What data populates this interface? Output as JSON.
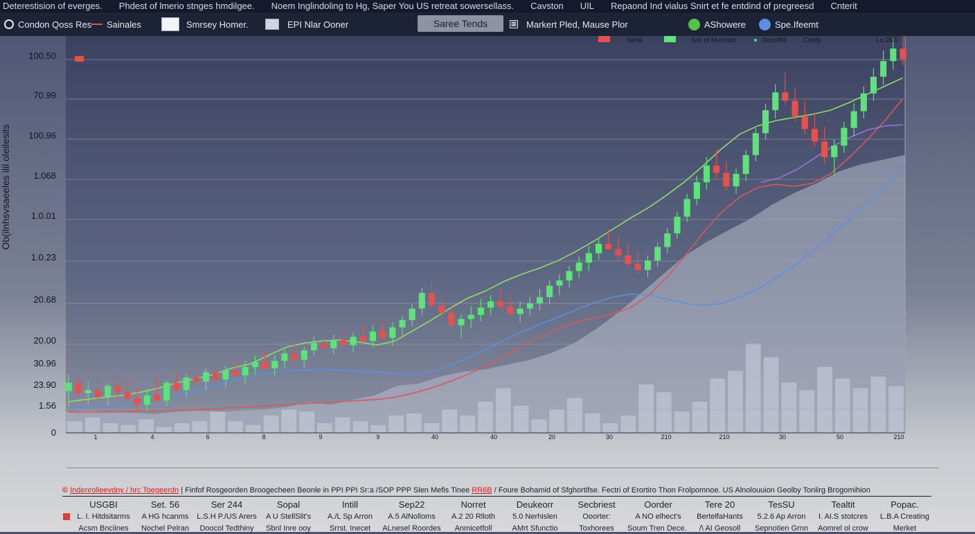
{
  "top_menu": [
    "Deterestision of everges.",
    "Phdest of lmerio stnges hmdilgee.",
    "Noem Inglindoling to Hg, Saper You US retreat sowersellass.",
    "Cavston",
    "UIL",
    "Repaond Ind vialus Snirt et fe entdind of pregreesd",
    "Cnterit"
  ],
  "toolbar": {
    "condon": "Condon Qoss Res",
    "sainales": "Sainales",
    "smrsey": "Smrsey Homer.",
    "epi": "EPI Nlar Ooner",
    "tab_active": "Saree Tends",
    "market": "Markert Pled, Mause Plor",
    "ashowere": "AShowere",
    "spelfit": "Spe.Ifeemt"
  },
  "legend": {
    "nirial": "Nirial",
    "sor": "Sor  ol  Murman",
    "ocrotfid": "Ocrotfid",
    "cooly": "Cooly",
    "lo": "Lo 266"
  },
  "colors": {
    "up": "#5ee27a",
    "down": "#e5524e",
    "ma_green": "#8fdc6a",
    "ma_blue": "#5b8fe0",
    "ma_red": "#d9585c",
    "ma_purple": "#9a74d6",
    "volume": "#cfd6e2"
  },
  "chart_data": {
    "type": "candlestick",
    "ylabel": "Ob(ilnhsvsaeeles ilil oleilesits",
    "y_ticks": [
      "100.50",
      "70.99",
      "100.96",
      "1.068",
      "1.0.01",
      "1.0.23",
      "20.68",
      "20.00",
      "30.96",
      "23.90",
      "1.56",
      "0"
    ],
    "x_ticks": [
      "1",
      "4",
      "6",
      "8",
      "9",
      "9",
      "40",
      "40",
      "20",
      "30",
      "210",
      "210",
      "30",
      "50",
      "210",
      "30"
    ],
    "ohlc": [
      [
        18.0,
        19.6,
        16.5,
        18.8
      ],
      [
        18.8,
        19.6,
        17.4,
        17.8
      ],
      [
        17.8,
        18.9,
        16.7,
        18.1
      ],
      [
        18.1,
        19.2,
        17.2,
        17.4
      ],
      [
        17.4,
        18.7,
        16.6,
        18.5
      ],
      [
        18.5,
        19.7,
        17.4,
        17.9
      ],
      [
        17.9,
        19.2,
        17.0,
        17.3
      ],
      [
        17.3,
        18.4,
        16.1,
        16.7
      ],
      [
        16.7,
        18.2,
        16.1,
        17.6
      ],
      [
        17.6,
        19.3,
        17.0,
        17.1
      ],
      [
        17.1,
        19.0,
        16.6,
        18.8
      ],
      [
        18.8,
        19.8,
        17.9,
        18.1
      ],
      [
        18.1,
        19.6,
        17.4,
        19.3
      ],
      [
        19.3,
        20.3,
        18.6,
        18.9
      ],
      [
        18.9,
        20.2,
        18.1,
        19.8
      ],
      [
        19.8,
        20.6,
        19.2,
        19.1
      ],
      [
        19.1,
        20.4,
        18.3,
        20.0
      ],
      [
        20.0,
        21.1,
        19.4,
        19.5
      ],
      [
        19.5,
        20.9,
        18.7,
        20.3
      ],
      [
        20.3,
        21.4,
        19.6,
        20.8
      ],
      [
        20.8,
        21.9,
        20.1,
        20.2
      ],
      [
        20.2,
        21.4,
        19.5,
        20.9
      ],
      [
        20.9,
        22.0,
        20.2,
        21.6
      ],
      [
        21.6,
        22.6,
        20.9,
        21.0
      ],
      [
        21.0,
        22.2,
        20.3,
        21.9
      ],
      [
        21.9,
        23.2,
        21.4,
        22.6
      ],
      [
        22.6,
        23.8,
        21.8,
        22.1
      ],
      [
        22.1,
        23.4,
        21.5,
        22.9
      ],
      [
        22.9,
        24.0,
        22.3,
        22.4
      ],
      [
        22.4,
        23.6,
        21.7,
        23.2
      ],
      [
        23.2,
        24.3,
        22.6,
        22.8
      ],
      [
        22.8,
        24.3,
        22.2,
        23.7
      ],
      [
        23.7,
        24.6,
        22.9,
        23.1
      ],
      [
        23.1,
        24.6,
        22.3,
        24.1
      ],
      [
        24.1,
        25.2,
        23.4,
        24.8
      ],
      [
        24.8,
        26.3,
        24.2,
        25.9
      ],
      [
        25.9,
        27.9,
        25.3,
        27.4
      ],
      [
        27.4,
        28.5,
        26.0,
        26.2
      ],
      [
        26.2,
        27.3,
        24.9,
        25.5
      ],
      [
        25.5,
        26.4,
        23.9,
        24.3
      ],
      [
        24.3,
        25.3,
        23.1,
        24.9
      ],
      [
        24.9,
        26.1,
        24.0,
        25.3
      ],
      [
        25.3,
        26.8,
        24.7,
        26.0
      ],
      [
        26.0,
        27.2,
        25.3,
        26.6
      ],
      [
        26.6,
        27.8,
        25.8,
        26.1
      ],
      [
        26.1,
        27.1,
        25.1,
        25.4
      ],
      [
        25.4,
        26.6,
        24.6,
        25.9
      ],
      [
        25.9,
        27.0,
        25.2,
        26.4
      ],
      [
        26.4,
        27.8,
        25.7,
        27.0
      ],
      [
        27.0,
        28.6,
        26.3,
        28.1
      ],
      [
        28.1,
        29.2,
        27.2,
        28.6
      ],
      [
        28.6,
        30.0,
        27.9,
        29.5
      ],
      [
        29.5,
        30.9,
        28.8,
        30.3
      ],
      [
        30.3,
        31.9,
        29.5,
        31.2
      ],
      [
        31.2,
        32.6,
        30.6,
        32.1
      ],
      [
        32.1,
        33.5,
        31.5,
        31.6
      ],
      [
        31.6,
        32.8,
        30.4,
        31.0
      ],
      [
        31.0,
        32.1,
        29.8,
        30.2
      ],
      [
        30.2,
        31.4,
        29.2,
        29.6
      ],
      [
        29.6,
        31.0,
        28.9,
        30.5
      ],
      [
        30.5,
        32.2,
        29.9,
        31.8
      ],
      [
        31.8,
        33.6,
        31.2,
        33.1
      ],
      [
        33.1,
        35.2,
        32.6,
        34.7
      ],
      [
        34.7,
        36.9,
        34.2,
        36.4
      ],
      [
        36.4,
        38.6,
        35.8,
        38.0
      ],
      [
        38.0,
        40.4,
        37.3,
        39.6
      ],
      [
        39.6,
        41.2,
        38.4,
        38.9
      ],
      [
        38.9,
        40.0,
        37.2,
        37.6
      ],
      [
        37.6,
        39.3,
        36.9,
        38.8
      ],
      [
        38.8,
        41.1,
        38.1,
        40.6
      ],
      [
        40.6,
        43.2,
        40.0,
        42.7
      ],
      [
        42.7,
        45.5,
        42.1,
        44.9
      ],
      [
        44.9,
        47.4,
        44.1,
        46.6
      ],
      [
        46.6,
        48.5,
        45.4,
        45.8
      ],
      [
        45.8,
        47.0,
        43.8,
        44.3
      ],
      [
        44.3,
        45.8,
        42.6,
        43.1
      ],
      [
        43.1,
        44.7,
        41.4,
        41.9
      ],
      [
        41.9,
        43.3,
        39.8,
        40.4
      ],
      [
        40.4,
        42.1,
        38.6,
        41.5
      ],
      [
        41.5,
        43.8,
        40.8,
        43.2
      ],
      [
        43.2,
        45.6,
        42.4,
        44.8
      ],
      [
        44.8,
        47.2,
        44.1,
        46.5
      ],
      [
        46.5,
        48.9,
        45.8,
        48.1
      ],
      [
        48.1,
        50.6,
        47.3,
        49.6
      ],
      [
        49.6,
        51.8,
        48.8,
        50.8
      ],
      [
        50.8,
        52.0,
        49.2,
        49.8
      ]
    ],
    "ma_green": [
      17.0,
      17.2,
      17.4,
      17.6,
      17.9,
      18.3,
      18.8,
      19.2,
      19.6,
      20.2,
      20.6,
      21.4,
      22.2,
      22.6,
      22.8,
      22.9,
      22.7,
      22.4,
      22.8,
      23.8,
      24.8,
      25.9,
      26.9,
      27.6,
      28.5,
      29.2,
      29.8,
      30.5,
      31.4,
      32.4,
      33.5,
      34.6,
      35.6,
      36.8,
      38.1,
      39.6,
      41.2,
      42.6,
      43.4,
      43.9,
      44.2,
      44.5,
      44.9,
      45.6,
      46.4,
      47.2,
      48.0
    ],
    "ma_blue": [
      16.4,
      16.5,
      16.6,
      16.8,
      17.0,
      17.3,
      17.6,
      18.0,
      18.5,
      19.0,
      19.4,
      19.7,
      19.9,
      20.0,
      20.1,
      20.0,
      19.9,
      19.8,
      19.7,
      19.6,
      19.8,
      20.4,
      21.2,
      22.0,
      22.9,
      23.7,
      24.4,
      25.1,
      25.8,
      26.5,
      27.0,
      27.3,
      27.2,
      26.8,
      26.4,
      26.2,
      26.4,
      27.0,
      27.8,
      28.8,
      30.0,
      31.4,
      32.8,
      34.4,
      36.0,
      37.8,
      39.6
    ],
    "ma_red": [
      16.0,
      16.0,
      16.0,
      16.0,
      16.1,
      16.1,
      16.2,
      16.2,
      16.3,
      16.4,
      16.5,
      16.6,
      16.7,
      16.8,
      16.9,
      17.0,
      17.1,
      17.2,
      17.4,
      17.8,
      18.3,
      18.9,
      19.6,
      20.4,
      21.3,
      22.3,
      23.2,
      24.0,
      24.6,
      25.0,
      25.4,
      26.0,
      27.2,
      28.9,
      31.0,
      33.2,
      35.1,
      36.6,
      37.5,
      37.8,
      37.6,
      37.9,
      38.8,
      40.3,
      42.0,
      43.9,
      46.0
    ],
    "ma_purple": [
      38.0,
      38.4,
      39.2,
      40.3,
      41.4,
      42.3,
      43.0,
      43.4,
      43.5
    ],
    "volume_profile": [
      0.9,
      0.95,
      0.9,
      0.85,
      0.8,
      0.9,
      0.95,
      0.9,
      0.95,
      1.0,
      1.1,
      1.3,
      1.2,
      1.4,
      1.6,
      2.0,
      2.1,
      2.4,
      2.6,
      2.7,
      2.9,
      3.1,
      3.4,
      3.8,
      4.4,
      5.1,
      5.9,
      6.7,
      7.5,
      8.1,
      8.6,
      9.1,
      9.7,
      10.2,
      10.6,
      11.1,
      11.4,
      11.6,
      11.8
    ],
    "volume_bars": [
      0.6,
      0.8,
      0.5,
      0.4,
      0.7,
      0.3,
      0.5,
      0.6,
      1.1,
      0.6,
      0.4,
      0.9,
      1.2,
      1.1,
      0.5,
      0.8,
      0.6,
      0.4,
      0.9,
      1.0,
      0.5,
      1.2,
      0.9,
      1.6,
      2.3,
      1.4,
      0.7,
      1.2,
      1.8,
      1.0,
      0.5,
      0.9,
      2.5,
      2.1,
      1.1,
      1.6,
      2.8,
      3.2,
      4.6,
      3.9,
      2.6,
      2.2,
      3.4,
      2.8,
      2.3,
      2.9,
      2.4
    ]
  },
  "notice": {
    "prefix": "Indenrolieevdny / hrc Toegeerdn",
    "text": "| Finfof Rosgeorden Broogecheen Beonle in PPI PPI Sr:a /SOP PPP Slen Mefis Tinee",
    "red2": "RR6B",
    "text2": "/ Foure Bohamid of Sfghortifse.  Fectri of Erortiro Thon Frolpomnoe.  US Alnolouuion Geolby Tonlirg Brogomihion"
  },
  "table": {
    "headers": [
      "USGBI",
      "Set. 56",
      "Ser 244",
      "Sopal",
      "Intill",
      "Sep22",
      "Norret",
      "Deukeorr",
      "Secbriest",
      "Oorder",
      "Tere 20",
      "TesSU",
      "Tealtit",
      "Popac."
    ],
    "row1": [
      "L. I. Hitdsitarms",
      "A HG hcanms",
      "L.S.H P./US Arers",
      "A U StellSlit's",
      "A./L Sp Arron",
      "A.5 AlNolloms",
      "A.2 20 Rlloth",
      "5.0 Nerhislen",
      "Ooorter:",
      "A NO elhect's",
      "BertelfaHants",
      "5.2.6 Ap Arron",
      "I. AI.S stotcres",
      "L.B.A Creating"
    ],
    "row2": [
      "Acsm Bnciines",
      "Nochel Pelran",
      "Doocol Tedthiny",
      "Sbnl Inre ooy",
      "Srrst. Inecet",
      "ALnesel Roordes",
      "Anmicetfoll",
      "AMrt Sfunctio",
      "Toxhorees",
      "Soum Tren Dece. 3",
      "/\\ AI Geosoll",
      "Sepnotien Grnn",
      "Aomrel ol crow",
      "Merket"
    ]
  }
}
